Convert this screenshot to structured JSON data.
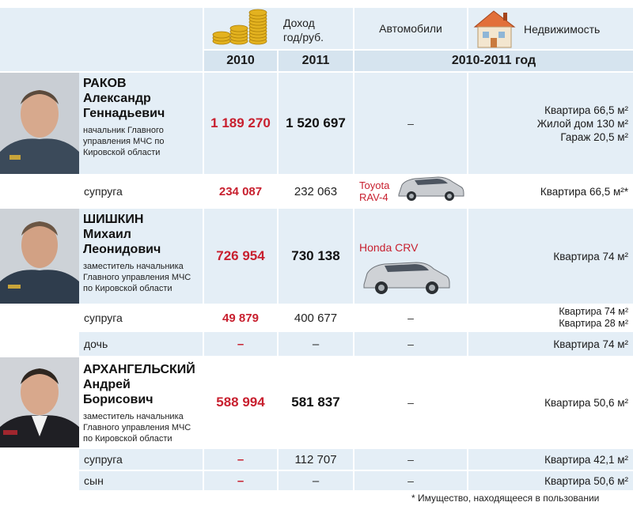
{
  "header": {
    "income_label": "Доход\nгод/руб.",
    "cars_label": "Автомобили",
    "property_label": "Недвижимость",
    "year_2010": "2010",
    "year_2011": "2011",
    "period": "2010-2011 год"
  },
  "people": [
    {
      "name_line1": "РАКОВ",
      "name_line2": "Александр",
      "name_line3": "Геннадьевич",
      "position": "начальник Главного управления МЧС по Кировской области",
      "income_2010": "1 189 270",
      "income_2011": "1 520 697",
      "cars": "–",
      "property": [
        "Квартира 66,5 м²",
        "Жилой дом 130 м²",
        "Гараж 20,5 м²"
      ]
    },
    {
      "name_line1": "ШИШКИН",
      "name_line2": "Михаил",
      "name_line3": "Леонидович",
      "position": "заместитель начальника Главного управления МЧС по Кировской области",
      "income_2010": "726 954",
      "income_2011": "730 138",
      "cars": "Honda CRV",
      "property": [
        "Квартира 74 м²"
      ]
    },
    {
      "name_line1": "АРХАНГЕЛЬСКИЙ",
      "name_line2": "Андрей",
      "name_line3": "Борисович",
      "position": "заместитель начальника Главного управления МЧС по Кировской области",
      "income_2010": "588 994",
      "income_2011": "581 837",
      "cars": "–",
      "property": [
        "Квартира 50,6 м²"
      ]
    }
  ],
  "relatives": [
    {
      "label": "супруга",
      "income_2010": "234 087",
      "income_2011": "232 063",
      "cars_line1": "Toyota",
      "cars_line2": "RAV-4",
      "property": [
        "Квартира 66,5 м²*"
      ]
    },
    {
      "label": "супруга",
      "income_2010": "49 879",
      "income_2011": "400 677",
      "cars": "–",
      "property": [
        "Квартира 74 м²",
        "Квартира 28 м²"
      ]
    },
    {
      "label": "дочь",
      "income_2010": "–",
      "income_2011": "–",
      "cars": "–",
      "property": [
        "Квартира 74 м²"
      ]
    },
    {
      "label": "супруга",
      "income_2010": "–",
      "income_2011": "112 707",
      "cars": "–",
      "property": [
        "Квартира 42,1 м²"
      ]
    },
    {
      "label": "сын",
      "income_2010": "–",
      "income_2011": "–",
      "cars": "–",
      "property": [
        "Квартира 50,6 м²"
      ]
    }
  ],
  "footnote": "* Имущество, находящееся в пользовании",
  "colors": {
    "accent_red": "#c8202f",
    "row_light": "#e4eef6",
    "row_mid": "#d6e4ef"
  }
}
